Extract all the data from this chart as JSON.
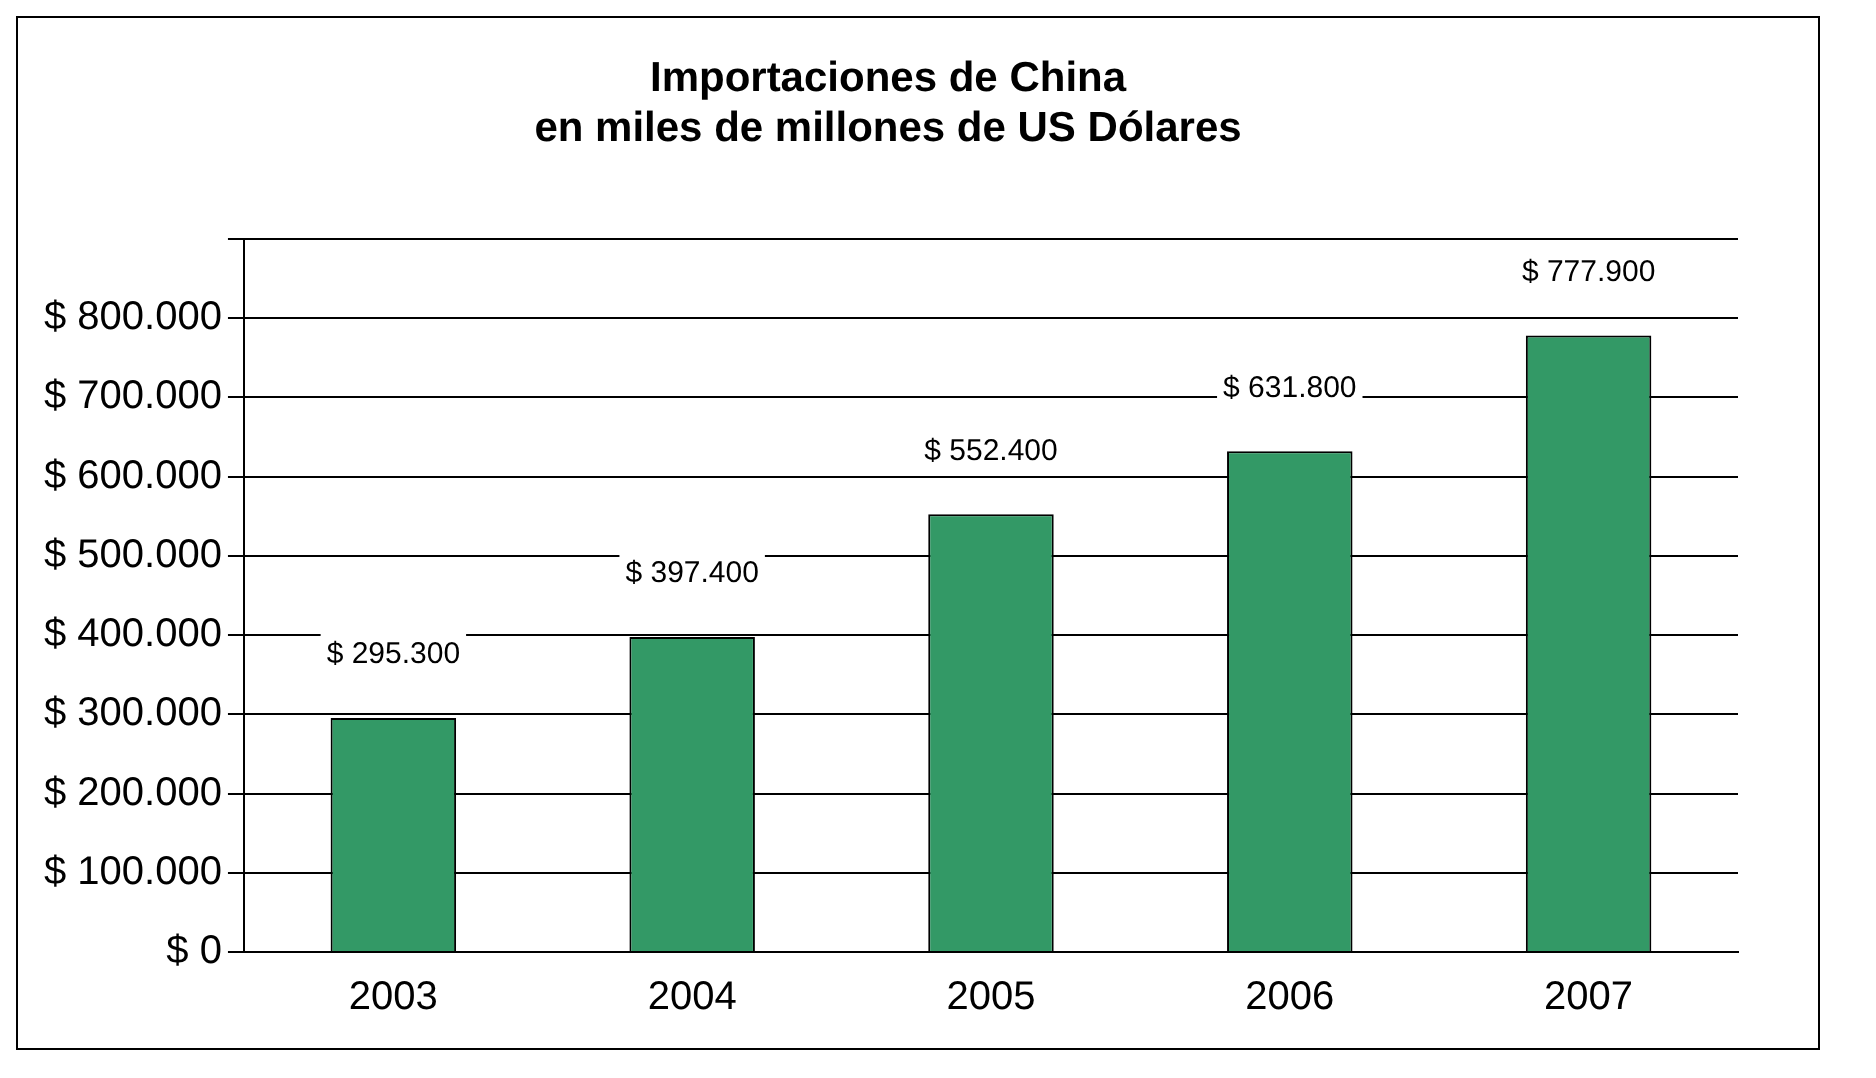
{
  "chart_data": {
    "type": "bar",
    "title": "Importaciones de China\nen miles de millones de US Dólares",
    "categories": [
      "2003",
      "2004",
      "2005",
      "2006",
      "2007"
    ],
    "values": [
      295300,
      397400,
      552400,
      631800,
      777900
    ],
    "value_labels": [
      "$ 295.300",
      "$ 397.400",
      "$ 552.400",
      "$ 631.800",
      "$ 777.900"
    ],
    "color": "#339966",
    "ylim": [
      0,
      900000
    ],
    "yticks": [
      {
        "value": 0,
        "label": "$ 0"
      },
      {
        "value": 100000,
        "label": "$ 100.000"
      },
      {
        "value": 200000,
        "label": "$ 200.000"
      },
      {
        "value": 300000,
        "label": "$ 300.000"
      },
      {
        "value": 400000,
        "label": "$ 400.000"
      },
      {
        "value": 500000,
        "label": "$ 500.000"
      },
      {
        "value": 600000,
        "label": "$ 600.000"
      },
      {
        "value": 700000,
        "label": "$ 700.000"
      },
      {
        "value": 800000,
        "label": "$ 800.000"
      },
      {
        "value": 900000,
        "label": null
      }
    ],
    "grid": "y",
    "legend": false
  }
}
